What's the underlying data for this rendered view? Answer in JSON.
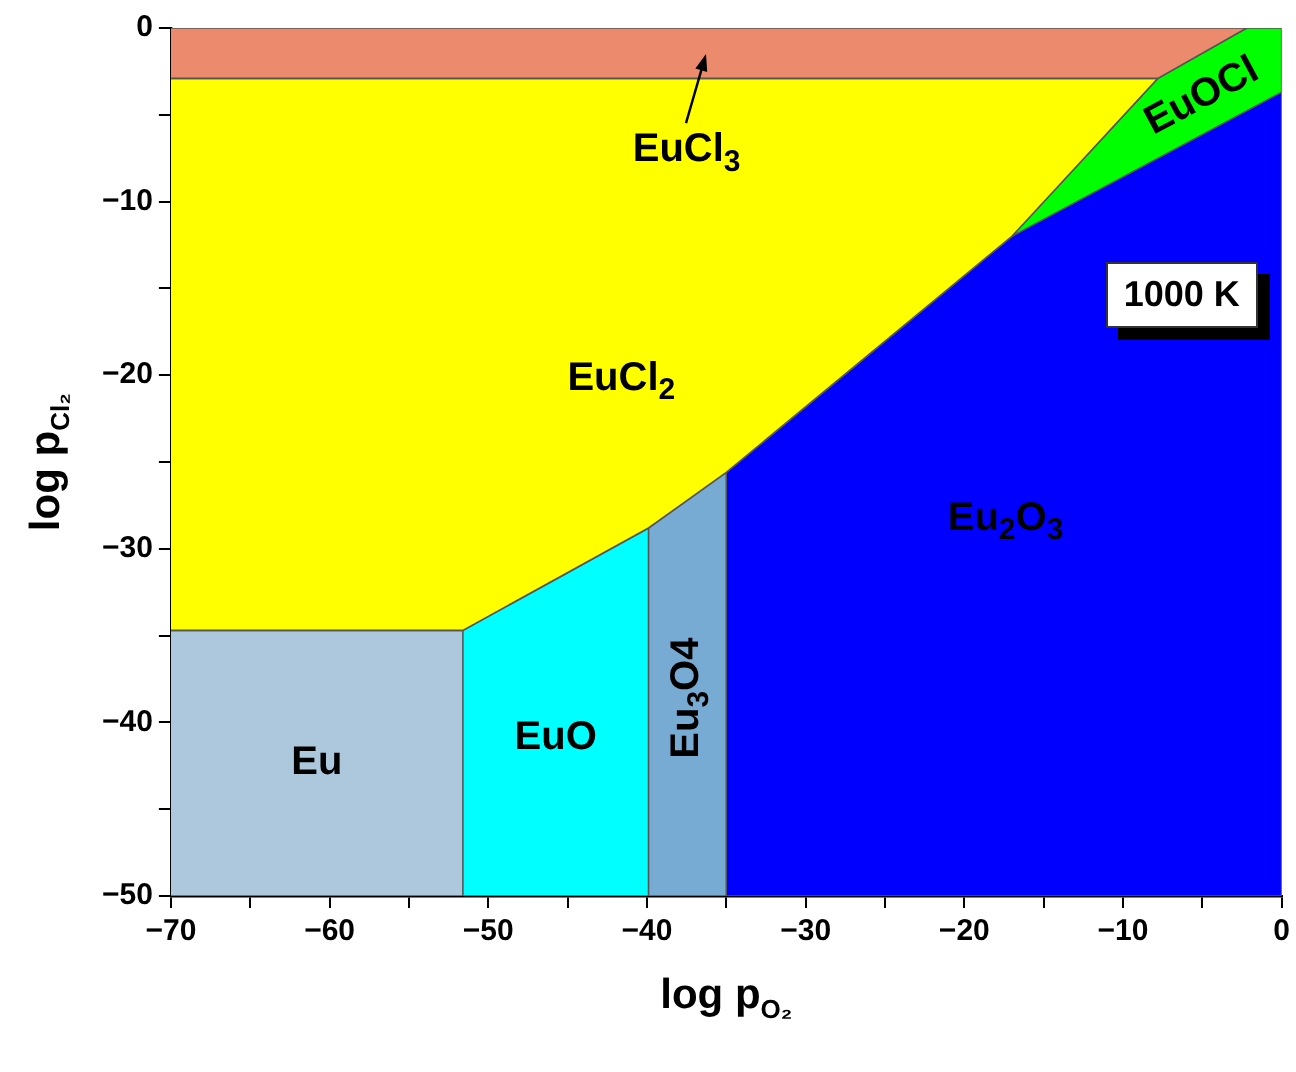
{
  "chart_data": {
    "type": "area",
    "xlabel": "log p$_{O₂}$",
    "ylabel": "log p$_{Cl₂}$",
    "xlim": [
      -70,
      0
    ],
    "ylim": [
      -50,
      0
    ],
    "xticks": [
      {
        "value": -70,
        "label": "−70"
      },
      {
        "value": -65,
        "label": null
      },
      {
        "value": -60,
        "label": "−60"
      },
      {
        "value": -55,
        "label": null
      },
      {
        "value": -50,
        "label": "−50"
      },
      {
        "value": -45,
        "label": null
      },
      {
        "value": -40,
        "label": "−40"
      },
      {
        "value": -35,
        "label": null
      },
      {
        "value": -30,
        "label": "−30"
      },
      {
        "value": -25,
        "label": null
      },
      {
        "value": -20,
        "label": "−20"
      },
      {
        "value": -15,
        "label": null
      },
      {
        "value": -10,
        "label": "−10"
      },
      {
        "value": -5,
        "label": null
      },
      0
    ],
    "yticks": [
      {
        "value": -50,
        "label": "−50"
      },
      {
        "value": -45,
        "label": null
      },
      {
        "value": -40,
        "label": "−40"
      },
      {
        "value": -35,
        "label": null
      },
      {
        "value": -30,
        "label": "−30"
      },
      {
        "value": -25,
        "label": null
      },
      {
        "value": -20,
        "label": "−20"
      },
      {
        "value": -15,
        "label": null
      },
      {
        "value": -10,
        "label": "−10"
      },
      {
        "value": -5,
        "label": null
      },
      0
    ],
    "series": [
      {
        "name": "EuCl$_{3}$",
        "color": "#ec8a6e",
        "x": [
          -70,
          -2.2,
          -7.8,
          -70
        ],
        "values": [
          0,
          0,
          -2.9,
          -2.9
        ]
      },
      {
        "name": "EuCl$_{2}$",
        "color": "#ffff00",
        "x": [
          -70,
          -7.8,
          -17,
          -35,
          -39.9,
          -51.6,
          -70
        ],
        "values": [
          -2.9,
          -2.9,
          -12,
          -25.6,
          -28.8,
          -34.7,
          -34.7
        ]
      },
      {
        "name": "Eu",
        "color": "#adc8dc",
        "x": [
          -70,
          -51.6,
          -51.6,
          -70
        ],
        "values": [
          -34.7,
          -34.7,
          -50,
          -50
        ]
      },
      {
        "name": "EuO",
        "color": "#00ffff",
        "x": [
          -51.6,
          -39.9,
          -39.9,
          -51.6
        ],
        "values": [
          -34.7,
          -28.8,
          -50,
          -50
        ]
      },
      {
        "name": "Eu$_{3}$O4",
        "color": "#78abd4",
        "x": [
          -39.9,
          -35,
          -35,
          -39.9
        ],
        "values": [
          -28.8,
          -25.6,
          -50,
          -50
        ]
      },
      {
        "name": "Eu$_{2}$O$_{3}$",
        "color": "#0000ff",
        "x": [
          -35,
          -17,
          0,
          0,
          -35
        ],
        "values": [
          -25.6,
          -12,
          -3.7,
          -50,
          -50
        ]
      },
      {
        "name": "EuOCl",
        "color": "#00ff00",
        "x": [
          -17,
          -7.8,
          -2.2,
          0,
          0
        ],
        "values": [
          -12,
          -2.9,
          0,
          0,
          -3.7
        ]
      }
    ],
    "annotations": [
      "1000 K"
    ]
  }
}
